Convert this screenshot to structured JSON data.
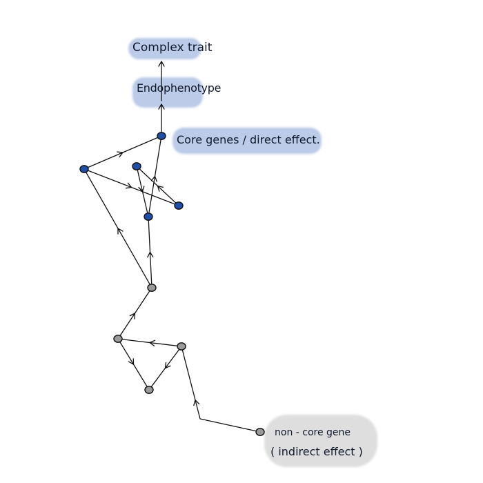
{
  "labels": {
    "complex_trait": "Complex trait",
    "endophenotype": "Endophenotype",
    "core_genes": "Core genes / direct effect.",
    "non_core_line1": "non - core   gene",
    "non_core_line2": "( indirect  effect )"
  },
  "colors": {
    "core_node": "#1e4fa8",
    "non_core_node": "#9a9a9a",
    "core_highlight": "#bccbe8",
    "non_core_highlight": "#dedede",
    "edge": "#111111"
  },
  "nodes": [
    {
      "id": "core-top",
      "group": "core"
    },
    {
      "id": "core-left",
      "group": "core"
    },
    {
      "id": "core-mid-upper",
      "group": "core"
    },
    {
      "id": "core-right",
      "group": "core"
    },
    {
      "id": "core-mid-lower",
      "group": "core"
    },
    {
      "id": "non-core-1",
      "group": "non-core"
    },
    {
      "id": "non-core-2",
      "group": "non-core"
    },
    {
      "id": "non-core-3",
      "group": "non-core"
    },
    {
      "id": "non-core-4",
      "group": "non-core"
    },
    {
      "id": "non-core-source",
      "group": "non-core"
    }
  ],
  "edges": [
    {
      "from": "core-left",
      "to": "core-top"
    },
    {
      "from": "core-left",
      "to": "core-right"
    },
    {
      "from": "core-mid-upper",
      "to": "core-mid-lower"
    },
    {
      "from": "core-right",
      "to": "core-mid-upper"
    },
    {
      "from": "core-mid-lower",
      "to": "core-top"
    },
    {
      "from": "non-core-1",
      "to": "core-left"
    },
    {
      "from": "non-core-1",
      "to": "core-mid-lower"
    },
    {
      "from": "non-core-2",
      "to": "non-core-1"
    },
    {
      "from": "non-core-4",
      "to": "non-core-2"
    },
    {
      "from": "non-core-2",
      "to": "non-core-3"
    },
    {
      "from": "non-core-4",
      "to": "non-core-3"
    },
    {
      "from": "non-core-source",
      "to": "non-core-4"
    },
    {
      "from": "core-top",
      "to": "endophenotype"
    },
    {
      "from": "endophenotype",
      "to": "complex-trait"
    }
  ]
}
